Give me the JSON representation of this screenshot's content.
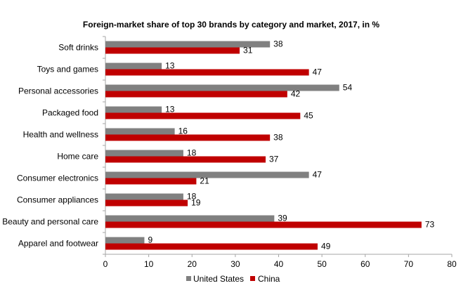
{
  "chart_data": {
    "type": "bar",
    "orientation": "horizontal",
    "title": "Foreign-market share of top 30 brands by category and market, 2017, in %",
    "xlabel": "",
    "ylabel": "",
    "xlim": [
      0,
      80
    ],
    "x_ticks": [
      "0",
      "10",
      "20",
      "30",
      "40",
      "50",
      "60",
      "70",
      "80"
    ],
    "categories": [
      "Soft drinks",
      "Toys and games",
      "Personal accessories",
      "Packaged food",
      "Health and wellness",
      "Home care",
      "Consumer electronics",
      "Consumer appliances",
      "Beauty and personal care",
      "Apparel and footwear"
    ],
    "series": [
      {
        "name": "United States",
        "color": "#808080",
        "values": [
          38,
          13,
          54,
          13,
          16,
          18,
          47,
          18,
          39,
          9
        ]
      },
      {
        "name": "China",
        "color": "#c00000",
        "values": [
          31,
          47,
          42,
          45,
          38,
          37,
          21,
          19,
          73,
          49
        ]
      }
    ],
    "grid": false,
    "legend_position": "bottom"
  }
}
